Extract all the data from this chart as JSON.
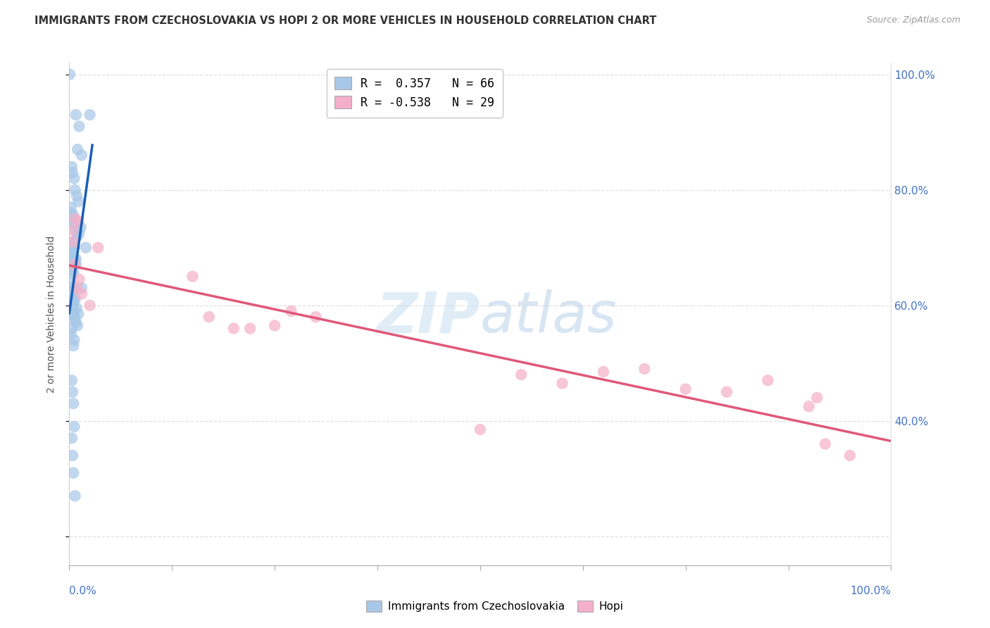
{
  "title": "IMMIGRANTS FROM CZECHOSLOVAKIA VS HOPI 2 OR MORE VEHICLES IN HOUSEHOLD CORRELATION CHART",
  "source": "Source: ZipAtlas.com",
  "ylabel": "2 or more Vehicles in Household",
  "legend_blue_label": "Immigrants from Czechoslovakia",
  "legend_pink_label": "Hopi",
  "blue_color": "#a8c8e8",
  "pink_color": "#f4b0c8",
  "blue_line_color": "#1a5fb4",
  "pink_line_color": "#e05878",
  "background_color": "#ffffff",
  "grid_color": "#d8d8d8",
  "right_axis_color": "#4472c4",
  "title_color": "#333333",
  "watermark_color": "#c8dff0",
  "blue_x": [
    0.05,
    1.2,
    0.8,
    2.5,
    1.0,
    1.5,
    0.3,
    0.4,
    0.6,
    0.7,
    0.9,
    1.1,
    0.2,
    0.3,
    0.5,
    0.6,
    0.7,
    0.8,
    1.0,
    1.2,
    1.4,
    0.4,
    0.5,
    0.6,
    0.3,
    0.4,
    0.5,
    0.6,
    0.7,
    0.8,
    0.3,
    0.4,
    0.5,
    0.2,
    0.3,
    0.4,
    0.5,
    0.6,
    0.4,
    0.5,
    0.3,
    0.4,
    0.5,
    0.6,
    0.7,
    0.8,
    1.0,
    1.5,
    2.0,
    0.3,
    0.2,
    0.4,
    0.6,
    0.5,
    0.7,
    0.9,
    1.1,
    0.8,
    0.3,
    0.4,
    0.5,
    0.6,
    0.3,
    0.4,
    0.5,
    0.7
  ],
  "blue_y": [
    100.0,
    91.0,
    93.0,
    93.0,
    87.0,
    86.0,
    84.0,
    83.0,
    82.0,
    80.0,
    79.0,
    78.0,
    77.0,
    76.0,
    75.5,
    74.5,
    74.0,
    73.0,
    72.0,
    72.5,
    73.5,
    71.0,
    70.5,
    70.0,
    69.5,
    69.0,
    68.5,
    68.0,
    67.5,
    67.0,
    66.5,
    66.0,
    65.5,
    64.0,
    63.0,
    62.5,
    62.0,
    61.5,
    61.0,
    60.5,
    59.5,
    59.0,
    58.5,
    58.0,
    57.5,
    57.0,
    56.5,
    63.0,
    70.0,
    56.0,
    55.0,
    60.0,
    54.0,
    53.0,
    61.0,
    59.5,
    58.5,
    68.0,
    47.0,
    45.0,
    43.0,
    39.0,
    37.0,
    34.0,
    31.0,
    27.0
  ],
  "pink_x": [
    0.4,
    1.5,
    1.2,
    2.5,
    0.5,
    0.6,
    0.7,
    0.9,
    1.1,
    3.5,
    15.0,
    17.0,
    20.0,
    22.0,
    25.0,
    27.0,
    30.0,
    50.0,
    55.0,
    60.0,
    65.0,
    70.0,
    75.0,
    80.0,
    85.0,
    90.0,
    91.0,
    92.0,
    95.0
  ],
  "pink_y": [
    73.0,
    62.0,
    64.5,
    60.0,
    71.0,
    67.0,
    75.0,
    63.0,
    74.5,
    70.0,
    65.0,
    58.0,
    56.0,
    56.0,
    56.5,
    59.0,
    58.0,
    38.5,
    48.0,
    46.5,
    48.5,
    49.0,
    45.5,
    45.0,
    47.0,
    42.5,
    44.0,
    36.0,
    34.0
  ],
  "xlim": [
    0,
    100
  ],
  "ylim": [
    15,
    102
  ],
  "yticks": [
    20,
    40,
    60,
    80,
    100
  ],
  "ytick_labels": [
    "",
    "40.0%",
    "60.0%",
    "80.0%",
    "100.0%"
  ],
  "xticks": [
    0,
    12.5,
    25,
    37.5,
    50,
    62.5,
    75,
    87.5,
    100
  ]
}
